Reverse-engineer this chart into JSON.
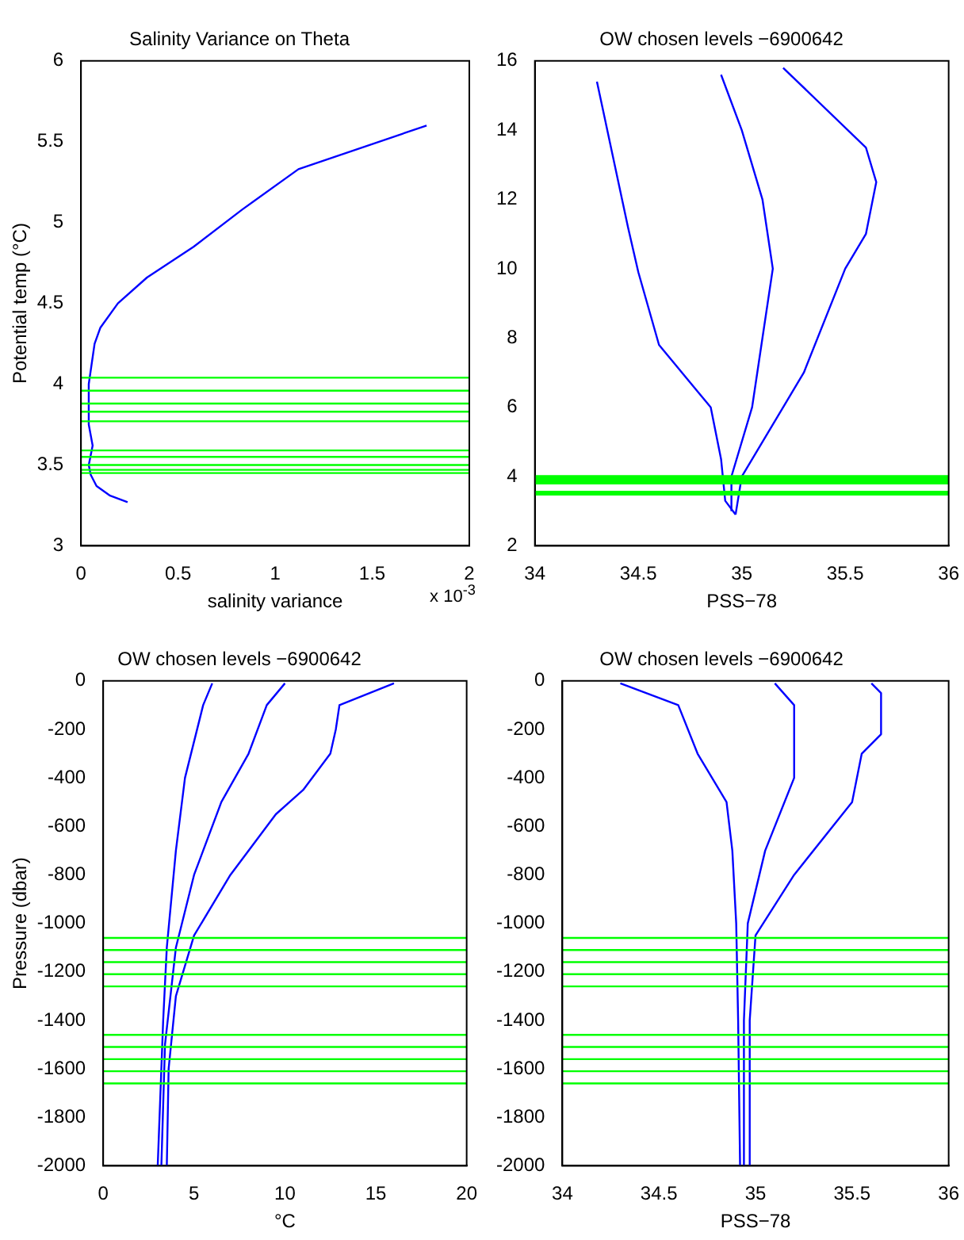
{
  "chart_data": [
    {
      "type": "line",
      "title": "Salinity Variance on Theta",
      "xlabel": "salinity variance",
      "ylabel": "Potential temp (°C)",
      "annotations": [
        "x 10$^{-3}$"
      ],
      "xlim": [
        0,
        2
      ],
      "xticks": [
        0,
        0.5,
        1,
        1.5,
        2
      ],
      "ylim": [
        3,
        6
      ],
      "yticks": [
        3,
        3.5,
        4,
        4.5,
        5,
        5.5,
        6
      ],
      "grid": false,
      "legend": false,
      "marker": "none",
      "series": [
        {
          "color": "#0000ff",
          "x": [
            0.24,
            0.15,
            0.08,
            0.05,
            0.04,
            0.06,
            0.04,
            0.04,
            0.07,
            0.1,
            0.19,
            0.34,
            0.58,
            0.83,
            1.12,
            1.78
          ],
          "values": [
            3.27,
            3.31,
            3.37,
            3.44,
            3.5,
            3.62,
            3.75,
            4.0,
            4.25,
            4.35,
            4.5,
            4.66,
            4.85,
            5.08,
            5.33,
            5.6
          ]
        }
      ],
      "ref_lines": [
        {
          "axis": "y",
          "value": 4.04,
          "color": "#00ff00"
        },
        {
          "axis": "y",
          "value": 3.96,
          "color": "#00ff00"
        },
        {
          "axis": "y",
          "value": 3.88,
          "color": "#00ff00"
        },
        {
          "axis": "y",
          "value": 3.83,
          "color": "#00ff00"
        },
        {
          "axis": "y",
          "value": 3.77,
          "color": "#00ff00"
        },
        {
          "axis": "y",
          "value": 3.59,
          "color": "#00ff00"
        },
        {
          "axis": "y",
          "value": 3.55,
          "color": "#00ff00"
        },
        {
          "axis": "y",
          "value": 3.5,
          "color": "#00ff00"
        },
        {
          "axis": "y",
          "value": 3.47,
          "color": "#00ff00"
        },
        {
          "axis": "y",
          "value": 3.45,
          "color": "#00ff00"
        }
      ]
    },
    {
      "type": "line",
      "title": "OW chosen levels −6900642",
      "xlabel": "PSS−78",
      "xlim": [
        34,
        36
      ],
      "xticks": [
        34,
        34.5,
        35,
        35.5,
        36
      ],
      "ylim": [
        2,
        16
      ],
      "yticks": [
        2,
        4,
        6,
        8,
        10,
        12,
        14,
        16
      ],
      "grid": false,
      "legend": false,
      "marker": "none",
      "series": [
        {
          "color": "#0000ff",
          "x": [
            34.97,
            34.92,
            34.9,
            34.85,
            34.78,
            34.6,
            34.5,
            34.45,
            34.3
          ],
          "values": [
            2.9,
            3.3,
            4.5,
            6,
            6.5,
            7.8,
            9.9,
            11.2,
            15.4
          ]
        },
        {
          "color": "#0000ff",
          "x": [
            34.95,
            34.95,
            35.05,
            35.1,
            35.15,
            35.1,
            35.0,
            34.9
          ],
          "values": [
            3,
            4,
            6,
            8,
            10,
            12,
            14,
            15.6
          ]
        },
        {
          "color": "#0000ff",
          "x": [
            34.97,
            35.0,
            35.3,
            35.5,
            35.6,
            35.65,
            35.6,
            35.2
          ],
          "values": [
            2.9,
            4,
            7,
            10,
            11,
            12.5,
            13.5,
            15.8
          ]
        }
      ],
      "bands": [
        {
          "axis": "y",
          "from": 3.77,
          "to": 4.04,
          "color": "#00ff00"
        },
        {
          "axis": "y",
          "from": 3.45,
          "to": 3.59,
          "color": "#00ff00"
        }
      ]
    },
    {
      "type": "line",
      "title": "OW chosen levels −6900642",
      "xlabel": "°C",
      "ylabel": "Pressure (dbar)",
      "xlim": [
        0,
        20
      ],
      "xticks": [
        0,
        5,
        10,
        15,
        20
      ],
      "ylim": [
        -2000,
        0
      ],
      "yticks": [
        -2000,
        -1800,
        -1600,
        -1400,
        -1200,
        -1000,
        -800,
        -600,
        -400,
        -200,
        0
      ],
      "grid": false,
      "legend": false,
      "marker": "none",
      "series": [
        {
          "color": "#0000ff",
          "x": [
            3.0,
            3.2,
            3.3,
            3.5,
            4.0,
            4.5,
            5.5,
            6
          ],
          "values": [
            -2000,
            -1600,
            -1400,
            -1100,
            -700,
            -400,
            -100,
            -10
          ]
        },
        {
          "color": "#0000ff",
          "x": [
            3.2,
            3.4,
            4,
            5,
            6.5,
            8,
            9,
            10
          ],
          "values": [
            -2000,
            -1500,
            -1100,
            -800,
            -500,
            -300,
            -100,
            -10
          ]
        },
        {
          "color": "#0000ff",
          "x": [
            3.5,
            3.6,
            4.0,
            5,
            7,
            9.5,
            11,
            12.5,
            12.8,
            13,
            16
          ],
          "values": [
            -2000,
            -1600,
            -1300,
            -1050,
            -800,
            -550,
            -450,
            -300,
            -200,
            -100,
            -10
          ]
        }
      ],
      "ref_lines": [
        {
          "axis": "y",
          "value": -1060,
          "color": "#00ff00"
        },
        {
          "axis": "y",
          "value": -1110,
          "color": "#00ff00"
        },
        {
          "axis": "y",
          "value": -1160,
          "color": "#00ff00"
        },
        {
          "axis": "y",
          "value": -1210,
          "color": "#00ff00"
        },
        {
          "axis": "y",
          "value": -1260,
          "color": "#00ff00"
        },
        {
          "axis": "y",
          "value": -1460,
          "color": "#00ff00"
        },
        {
          "axis": "y",
          "value": -1510,
          "color": "#00ff00"
        },
        {
          "axis": "y",
          "value": -1560,
          "color": "#00ff00"
        },
        {
          "axis": "y",
          "value": -1610,
          "color": "#00ff00"
        },
        {
          "axis": "y",
          "value": -1660,
          "color": "#00ff00"
        }
      ]
    },
    {
      "type": "line",
      "title": "OW chosen levels −6900642",
      "xlabel": "PSS−78",
      "xlim": [
        34,
        36
      ],
      "xticks": [
        34,
        34.5,
        35,
        35.5,
        36
      ],
      "ylim": [
        -2000,
        0
      ],
      "yticks": [
        -2000,
        -1800,
        -1600,
        -1400,
        -1200,
        -1000,
        -800,
        -600,
        -400,
        -200,
        0
      ],
      "grid": false,
      "legend": false,
      "marker": "none",
      "series": [
        {
          "color": "#0000ff",
          "x": [
            34.92,
            34.91,
            34.9,
            34.88,
            34.85,
            34.7,
            34.6,
            34.3
          ],
          "values": [
            -2000,
            -1400,
            -1000,
            -700,
            -500,
            -300,
            -100,
            -10
          ]
        },
        {
          "color": "#0000ff",
          "x": [
            34.94,
            34.94,
            34.96,
            35.05,
            35.2,
            35.2,
            35.1
          ],
          "values": [
            -2000,
            -1400,
            -1000,
            -700,
            -400,
            -100,
            -10
          ]
        },
        {
          "color": "#0000ff",
          "x": [
            34.97,
            34.97,
            35.0,
            35.2,
            35.5,
            35.55,
            35.65,
            35.65,
            35.6
          ],
          "values": [
            -2000,
            -1400,
            -1050,
            -800,
            -500,
            -300,
            -220,
            -50,
            -10
          ]
        }
      ],
      "ref_lines": [
        {
          "axis": "y",
          "value": -1060,
          "color": "#00ff00"
        },
        {
          "axis": "y",
          "value": -1110,
          "color": "#00ff00"
        },
        {
          "axis": "y",
          "value": -1160,
          "color": "#00ff00"
        },
        {
          "axis": "y",
          "value": -1210,
          "color": "#00ff00"
        },
        {
          "axis": "y",
          "value": -1260,
          "color": "#00ff00"
        },
        {
          "axis": "y",
          "value": -1460,
          "color": "#00ff00"
        },
        {
          "axis": "y",
          "value": -1510,
          "color": "#00ff00"
        },
        {
          "axis": "y",
          "value": -1560,
          "color": "#00ff00"
        },
        {
          "axis": "y",
          "value": -1610,
          "color": "#00ff00"
        },
        {
          "axis": "y",
          "value": -1660,
          "color": "#00ff00"
        }
      ]
    }
  ]
}
